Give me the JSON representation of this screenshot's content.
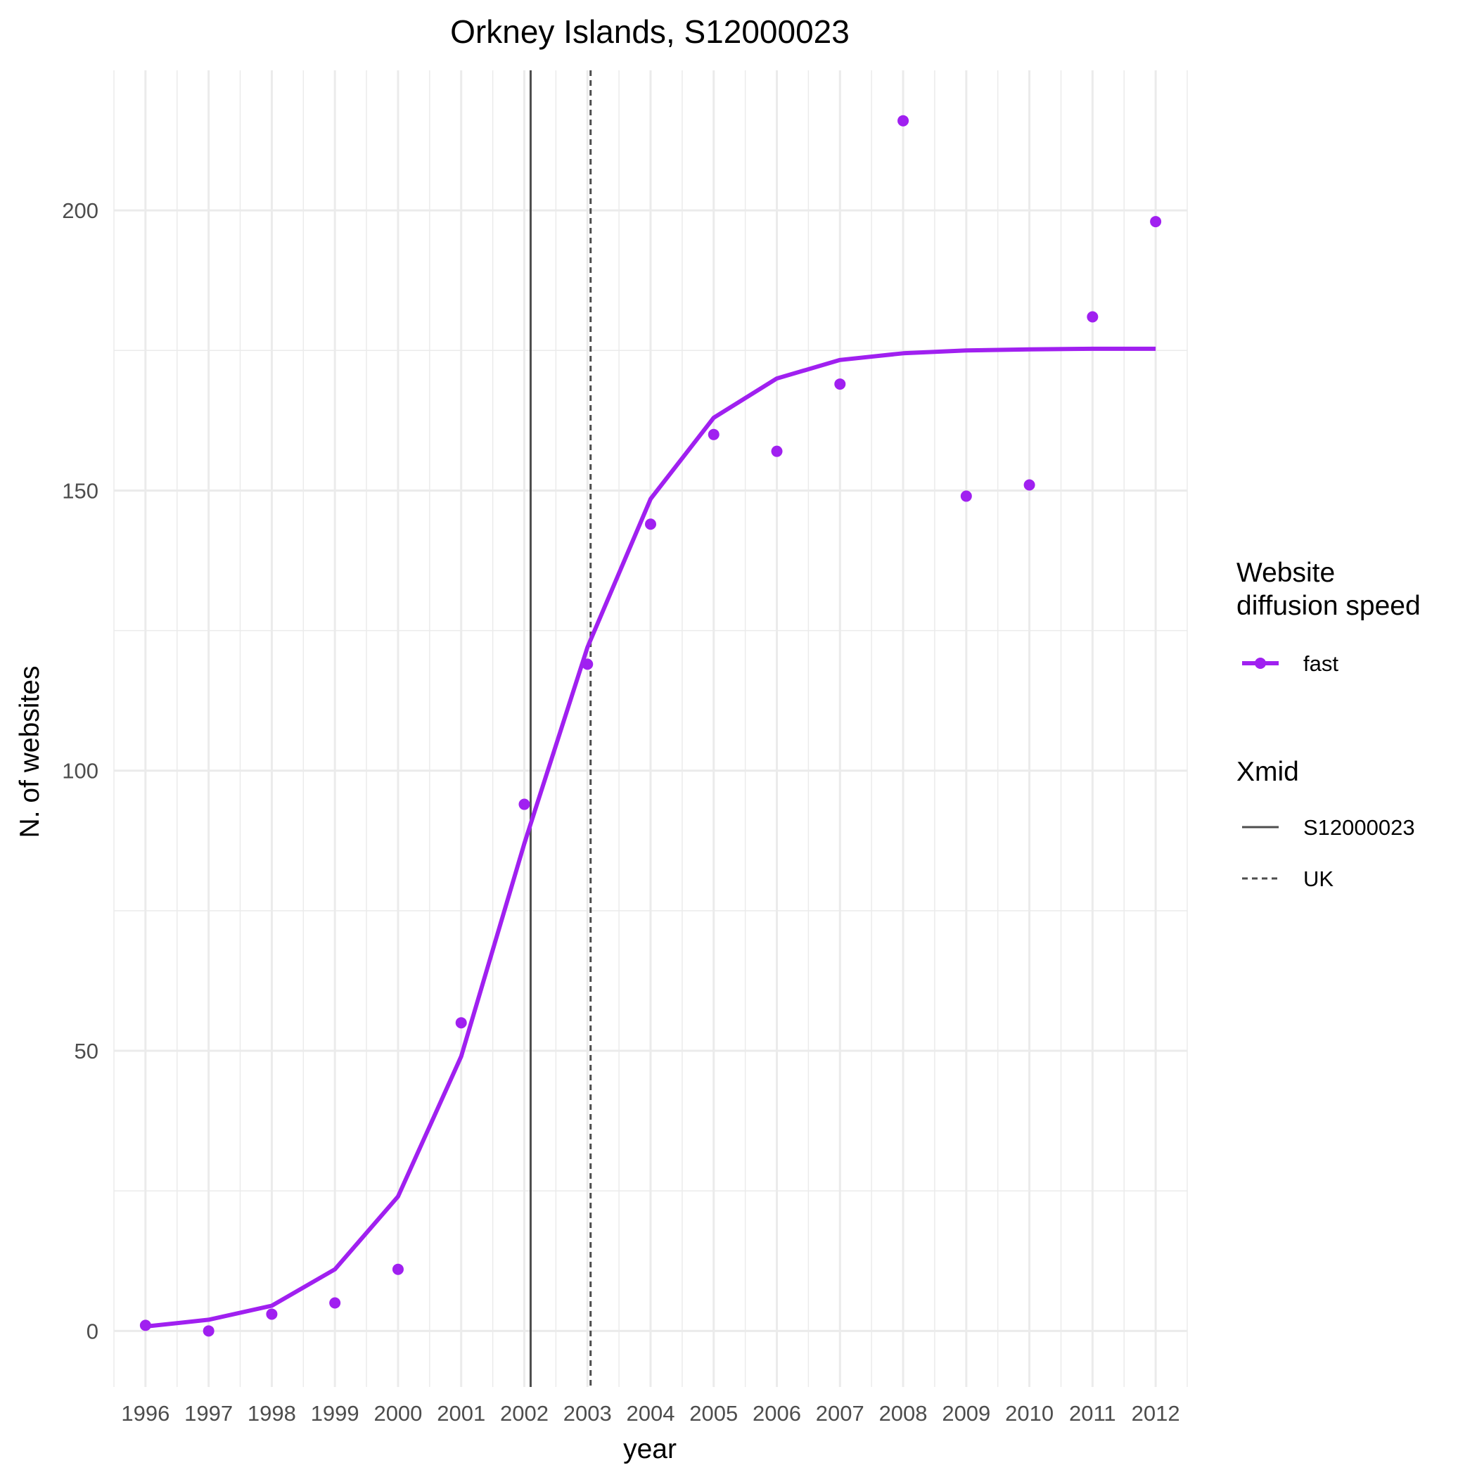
{
  "chart_data": {
    "type": "line",
    "title": "Orkney Islands, S12000023",
    "xlabel": "year",
    "ylabel": "N. of websites",
    "x": [
      1996,
      1997,
      1998,
      1999,
      2000,
      2001,
      2002,
      2003,
      2004,
      2005,
      2006,
      2007,
      2008,
      2009,
      2010,
      2011,
      2012
    ],
    "x_tick_labels": [
      "1996",
      "1997",
      "1998",
      "1999",
      "2000",
      "2001",
      "2002",
      "2003",
      "2004",
      "2005",
      "2006",
      "2007",
      "2008",
      "2009",
      "2010",
      "2011",
      "2012"
    ],
    "y_ticks": [
      0,
      50,
      100,
      150,
      200
    ],
    "y_tick_labels": [
      "0",
      "50",
      "100",
      "150",
      "200"
    ],
    "xlim": [
      1995.5,
      2012.5
    ],
    "ylim": [
      -10,
      225
    ],
    "grid": true,
    "series": [
      {
        "name": "fast",
        "color": "#A020F0",
        "points": [
          1,
          0,
          3,
          5,
          11,
          55,
          94,
          119,
          144,
          160,
          157,
          169,
          216,
          149,
          151,
          181,
          198
        ],
        "fitted": [
          0.8,
          2,
          4.5,
          11,
          24,
          49,
          87,
          122,
          148.5,
          163,
          170,
          173.3,
          174.5,
          175,
          175.2,
          175.3,
          175.3
        ]
      }
    ],
    "vlines": [
      {
        "name": "S12000023",
        "x": 2002.1,
        "style": "solid",
        "color": "#4d4d4d"
      },
      {
        "name": "UK",
        "x": 2003.05,
        "style": "dashed",
        "color": "#4d4d4d"
      }
    ],
    "legend": {
      "placement": "right",
      "speed_title_line1": "Website",
      "speed_title_line2": "diffusion speed",
      "speed_label": "fast",
      "xmid_title": "Xmid",
      "xmid_labels": [
        "S12000023",
        "UK"
      ]
    }
  }
}
